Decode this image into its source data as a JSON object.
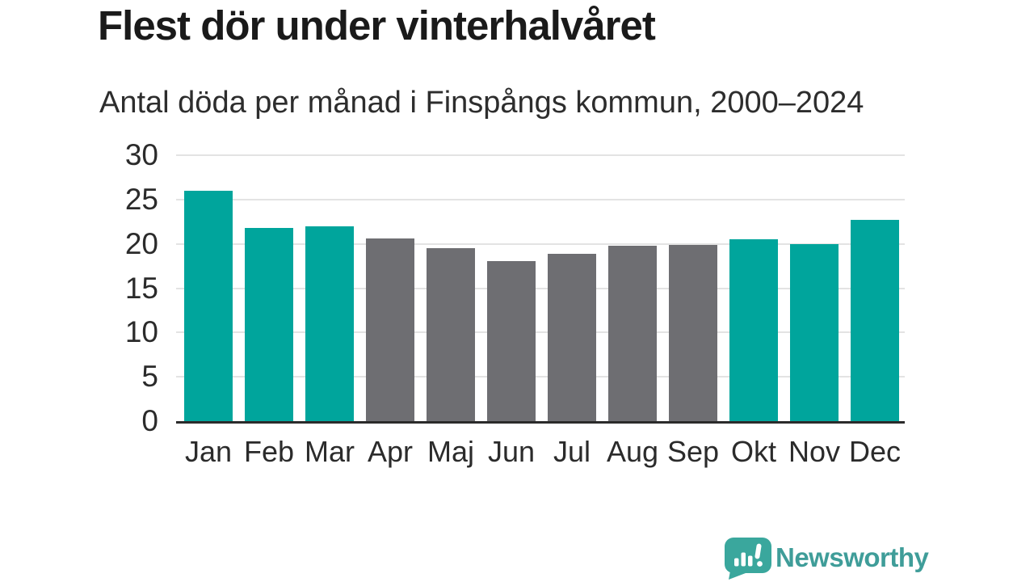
{
  "chart_data": {
    "type": "bar",
    "title": "Flest dör under vinterhalvåret",
    "subtitle": "Antal döda per månad i Finspångs kommun, 2000–2024",
    "categories": [
      "Jan",
      "Feb",
      "Mar",
      "Apr",
      "Maj",
      "Jun",
      "Jul",
      "Aug",
      "Sep",
      "Okt",
      "Nov",
      "Dec"
    ],
    "values": [
      26.0,
      21.8,
      22.0,
      20.6,
      19.5,
      18.1,
      18.9,
      19.8,
      19.9,
      20.5,
      20.0,
      22.7
    ],
    "ylabel": "",
    "xlabel": "",
    "ylim": [
      0,
      30
    ],
    "yticks": [
      0,
      5,
      10,
      15,
      20,
      25,
      30
    ],
    "grid": true,
    "legend": "none",
    "highlighted_categories": [
      "Jan",
      "Feb",
      "Mar",
      "Okt",
      "Nov",
      "Dec"
    ],
    "highlight_color": "#00a59c",
    "base_color": "#6e6e72",
    "axis_color": "#2b2b2b",
    "gridline_color": "#e3e3e3",
    "tick_label_color": "#2b2b2b"
  },
  "footer": {
    "brand": "Newsworthy",
    "logo_icon": "bar-chart-speech-bubble",
    "brand_text_color": "#3f9d99",
    "logo_color": "#3aa79d"
  }
}
